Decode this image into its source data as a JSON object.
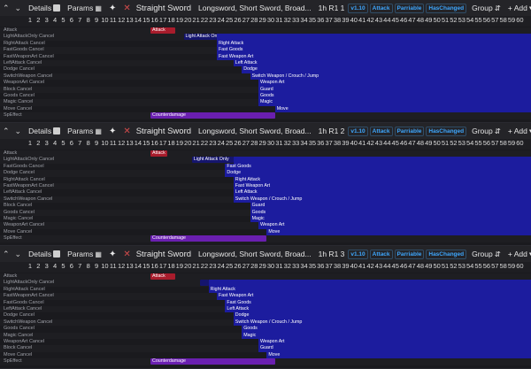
{
  "toolbar": {
    "details_label": "Details",
    "params_label": "Params",
    "weapon_title": "Straight Sword",
    "weapons_list": "Longsword, Short Sword, Broad...",
    "version": "v1.10",
    "attack_badge": "Attack",
    "parriable_badge": "Parriable",
    "changed_badge": "HasChanged",
    "group_label": "Group",
    "add_label": "+ Add"
  },
  "frame_numbers": [
    "1",
    "2",
    "3",
    "4",
    "5",
    "6",
    "7",
    "8",
    "9",
    "10",
    "11",
    "12",
    "13",
    "14",
    "15",
    "16",
    "17",
    "18",
    "19",
    "20",
    "21",
    "22",
    "23",
    "24",
    "25",
    "26",
    "27",
    "28",
    "29",
    "30",
    "31",
    "32",
    "33",
    "34",
    "35",
    "36",
    "37",
    "38",
    "39",
    "40",
    "41",
    "42",
    "43",
    "44",
    "45",
    "46",
    "47",
    "48",
    "49",
    "50",
    "51",
    "52",
    "53",
    "54",
    "55",
    "56",
    "57",
    "58",
    "59",
    "60"
  ],
  "panels": [
    {
      "move_name": "1h R1 1",
      "rows": [
        "Attack",
        "LightAttackOnly Cancel",
        "RightAttack Cancel",
        "FastGoods Cancel",
        "FastWeaponArt Cancel",
        "LeftAttack Cancel",
        "Dodge Cancel",
        "SwitchWeapon Cancel",
        "WeaponArt Cancel",
        "Block Cancel",
        "Goods Cancel",
        "Magic Cancel",
        "Move Cancel",
        "SpEffect"
      ],
      "labels": [
        "Attack",
        "Light Attack Only",
        "Right Attack",
        "Fast Goods",
        "Fast Weapon Art",
        "Left Attack",
        "Dodge",
        "Switch Weapon / Crouch / Jump",
        "Weapon Art",
        "Guard",
        "Goods",
        "Magic",
        "Move",
        "Counterdamage"
      ],
      "starts": [
        16,
        20,
        24,
        24,
        24,
        26,
        27,
        28,
        29,
        29,
        29,
        29,
        31,
        16
      ],
      "ends": [
        19,
        24,
        0,
        0,
        0,
        0,
        0,
        0,
        0,
        0,
        0,
        0,
        0,
        31
      ]
    },
    {
      "move_name": "1h R1 2",
      "rows": [
        "Attack",
        "LightAttackOnly Cancel",
        "FastGoods Cancel",
        "Dodge Cancel",
        "RightAttack Cancel",
        "FastWeaponArt Cancel",
        "LeftAttack Cancel",
        "SwitchWeapon Cancel",
        "Block Cancel",
        "Goods Cancel",
        "Magic Cancel",
        "WeaponArt Cancel",
        "Move Cancel",
        "SpEffect"
      ],
      "labels": [
        "Attack",
        "Light Attack Only",
        "Fast Goods",
        "Dodge",
        "Right Attack",
        "Fast Weapon Art",
        "Left Attack",
        "Switch Weapon / Crouch / Jump",
        "Guard",
        "Goods",
        "Magic",
        "Weapon Art",
        "Move",
        "Counterdamage"
      ],
      "starts": [
        16,
        21,
        25,
        25,
        26,
        26,
        26,
        26,
        28,
        28,
        28,
        29,
        30,
        16
      ],
      "ends": [
        18,
        26,
        0,
        0,
        0,
        0,
        0,
        0,
        0,
        0,
        0,
        0,
        0,
        30
      ]
    },
    {
      "move_name": "1h R1 3",
      "rows": [
        "Attack",
        "LightAttackOnly Cancel",
        "RightAttack Cancel",
        "FastWeaponArt Cancel",
        "FastGoods Cancel",
        "LeftAttack Cancel",
        "Dodge Cancel",
        "SwitchWeapon Cancel",
        "Goods Cancel",
        "Magic Cancel",
        "WeaponArt Cancel",
        "Block Cancel",
        "Move Cancel",
        "SpEffect"
      ],
      "labels": [
        "Attack",
        "",
        "Right Attack",
        "Fast Weapon Art",
        "Fast Goods",
        "Left Attack",
        "Dodge",
        "Switch Weapon / Crouch / Jump",
        "Goods",
        "Magic",
        "Weapon Art",
        "Guard",
        "Move",
        "Counterdamage"
      ],
      "starts": [
        16,
        22,
        23,
        24,
        25,
        25,
        26,
        26,
        27,
        27,
        29,
        29,
        30,
        16
      ],
      "ends": [
        19,
        23,
        0,
        0,
        0,
        0,
        0,
        0,
        0,
        0,
        0,
        0,
        0,
        31
      ]
    }
  ],
  "colors": {
    "attack": "#a81c2c",
    "cancel": "#1c1c9e",
    "lightattack": "#15156e",
    "speffect": "#6a1fb0"
  },
  "icons": [
    "chevron-up-icon",
    "chevron-down-icon",
    "details-icon",
    "chart-icon",
    "expand-icon",
    "close-icon",
    "sort-icon",
    "chevron-down-icon"
  ]
}
